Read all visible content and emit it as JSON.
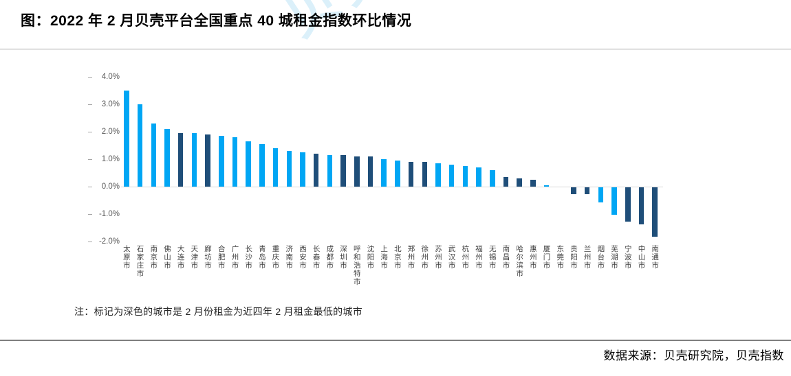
{
  "page": {
    "title": "图：2022 年 2 月贝壳平台全国重点 40 城租金指数环比情况",
    "note": "注：标记为深色的城市是 2 月份租金为近四年 2 月租金最低的城市",
    "source": "数据来源：贝壳研究院，贝壳指数",
    "watermark": "贝壳研究院"
  },
  "colors": {
    "bar_light": "#00a6f4",
    "bar_dark": "#1f4e79",
    "axis_line": "#d9d9d9",
    "tick_text": "#595959"
  },
  "chart_data": {
    "type": "bar",
    "title": "2022年2月贝壳平台全国重点40城租金指数环比情况",
    "xlabel": "",
    "ylabel": "",
    "ylim": [
      -2.0,
      4.0
    ],
    "ytick_labels": [
      "4.0%",
      "3.0%",
      "2.0%",
      "1.0%",
      "0.0%",
      "-1.0%",
      "-2.0%"
    ],
    "grid": false,
    "legend": "none",
    "dark_bar_meaning": "标记为深色的城市是2月份租金为近四年2月租金最低的城市",
    "categories": [
      "太原市",
      "石家庄市",
      "南京市",
      "佛山市",
      "大连市",
      "天津市",
      "廊坊市",
      "合肥市",
      "广州市",
      "长沙市",
      "青岛市",
      "重庆市",
      "济南市",
      "西安市",
      "长春市",
      "成都市",
      "深圳市",
      "呼和浩特市",
      "沈阳市",
      "上海市",
      "北京市",
      "郑州市",
      "徐州市",
      "苏州市",
      "武汉市",
      "杭州市",
      "福州市",
      "无锡市",
      "南昌市",
      "哈尔滨市",
      "惠州市",
      "厦门市",
      "东莞市",
      "贵阳市",
      "兰州市",
      "烟台市",
      "芜湖市",
      "宁波市",
      "中山市",
      "南通市"
    ],
    "values": [
      3.5,
      3.0,
      2.3,
      2.1,
      1.95,
      1.95,
      1.9,
      1.85,
      1.8,
      1.65,
      1.55,
      1.4,
      1.3,
      1.25,
      1.2,
      1.15,
      1.15,
      1.1,
      1.1,
      1.0,
      0.95,
      0.9,
      0.9,
      0.85,
      0.8,
      0.75,
      0.7,
      0.6,
      0.35,
      0.3,
      0.25,
      0.05,
      0.0,
      -0.25,
      -0.25,
      -0.55,
      -1.0,
      -1.25,
      -1.35,
      -1.8
    ],
    "dark_flags": [
      false,
      false,
      false,
      false,
      true,
      false,
      true,
      false,
      false,
      false,
      false,
      false,
      false,
      false,
      true,
      false,
      true,
      true,
      true,
      false,
      false,
      true,
      true,
      false,
      false,
      false,
      false,
      false,
      true,
      true,
      true,
      false,
      false,
      true,
      true,
      false,
      false,
      true,
      true,
      true
    ]
  }
}
